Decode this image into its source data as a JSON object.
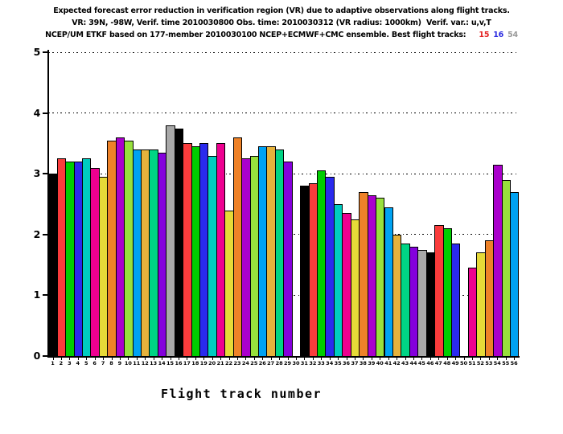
{
  "title": {
    "line1": "Expected forecast error reduction in verification region (VR) due to adaptive observations along flight tracks.",
    "line2": "VR: 39N, -98W, Verif. time 2010030800 Obs. time: 2010030312 (VR radius: 1000km)  Verif. var.: u,v,T",
    "line3_prefix": "NCEP/UM ETKF based on 177-member 2010030100 NCEP+ECMWF+CMC ensemble. Best flight tracks:",
    "best_tracks": [
      {
        "label": "15",
        "color": "#e32222"
      },
      {
        "label": "16",
        "color": "#2a2ae0"
      },
      {
        "label": "54",
        "color": "#9a9a9a"
      }
    ]
  },
  "chart_data": {
    "type": "bar",
    "title": "Expected forecast error reduction in VR due to adaptive observations along flight tracks",
    "xlabel": "Flight track number",
    "ylabel": "",
    "ylim": [
      0,
      5
    ],
    "yticks": [
      0,
      1,
      2,
      3,
      4,
      5
    ],
    "grid": "horizontal dash-dot lines at integer values, drawn behind bars",
    "legend": "none",
    "bar_outline_color": "#000000",
    "palette_cycle": [
      "#000000",
      "#fa3c3c",
      "#00cd00",
      "#2a2aee",
      "#00ccc0",
      "#ee0090",
      "#e6da38",
      "#ee8228",
      "#aa00cc",
      "#98e03c",
      "#00a2f2",
      "#e6b23c",
      "#00d484",
      "#8400dc",
      "#a8a8a8"
    ],
    "categories": [
      "1",
      "2",
      "3",
      "4",
      "5",
      "6",
      "7",
      "8",
      "9",
      "10",
      "11",
      "12",
      "13",
      "14",
      "15",
      "16",
      "17",
      "18",
      "19",
      "20",
      "21",
      "22",
      "23",
      "24",
      "25",
      "26",
      "27",
      "28",
      "29",
      "30",
      "31",
      "32",
      "33",
      "34",
      "35",
      "36",
      "37",
      "38",
      "39",
      "40",
      "41",
      "42",
      "43",
      "44",
      "45",
      "46",
      "47",
      "48",
      "49",
      "50",
      "51",
      "52",
      "53",
      "54",
      "55",
      "56"
    ],
    "values": [
      3.0,
      3.25,
      3.2,
      3.2,
      3.25,
      3.1,
      2.95,
      3.55,
      3.6,
      3.55,
      3.4,
      3.4,
      3.4,
      3.35,
      3.8,
      3.75,
      3.5,
      3.45,
      3.5,
      3.3,
      3.5,
      2.4,
      3.6,
      3.25,
      3.3,
      3.45,
      3.45,
      3.4,
      3.2,
      null,
      2.8,
      2.85,
      3.05,
      2.95,
      2.5,
      2.35,
      2.25,
      2.7,
      2.65,
      2.6,
      2.45,
      2.0,
      1.85,
      1.8,
      1.75,
      1.7,
      2.15,
      2.1,
      1.85,
      null,
      1.45,
      1.7,
      1.9,
      3.15,
      2.9,
      2.7
    ],
    "missing_tracks": [
      "30",
      "50"
    ],
    "highlighted_best_tracks": [
      "15",
      "16",
      "54"
    ]
  }
}
